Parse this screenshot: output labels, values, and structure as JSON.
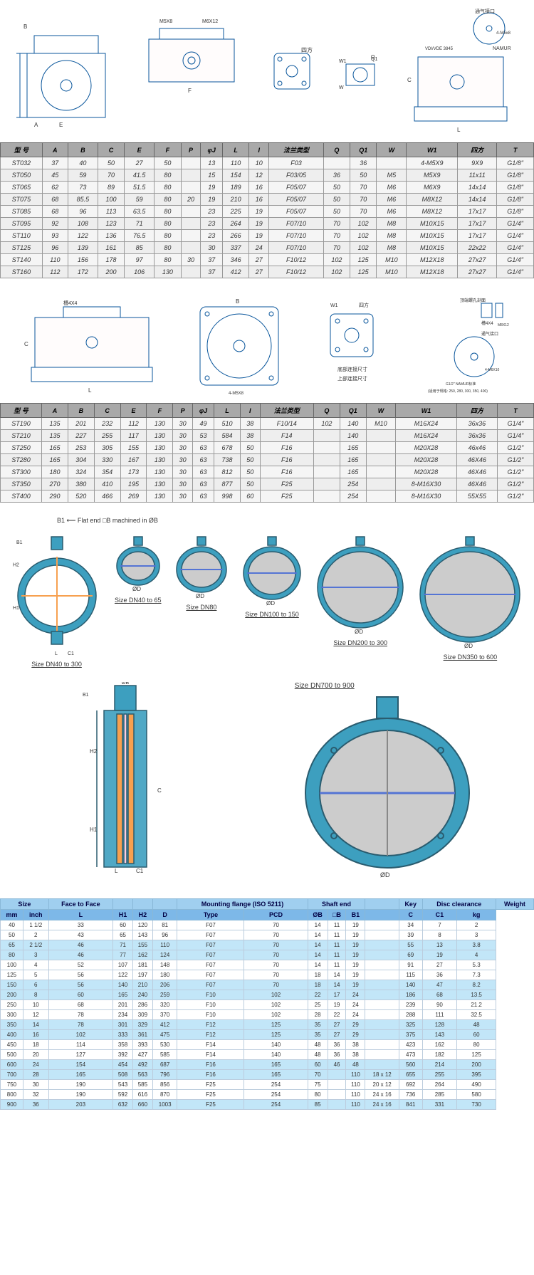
{
  "table1": {
    "headers": [
      "型 号",
      "A",
      "B",
      "C",
      "E",
      "F",
      "P",
      "φJ",
      "L",
      "I",
      "法兰类型",
      "Q",
      "Q1",
      "W",
      "W1",
      "四方",
      "T"
    ],
    "rows": [
      [
        "ST032",
        "37",
        "40",
        "50",
        "27",
        "50",
        "",
        "13",
        "110",
        "10",
        "F03",
        "",
        "36",
        "",
        "4-M5X9",
        "9X9",
        "G1/8\""
      ],
      [
        "ST050",
        "45",
        "59",
        "70",
        "41.5",
        "80",
        "",
        "15",
        "154",
        "12",
        "F03/05",
        "36",
        "50",
        "M5",
        "M5X9",
        "11x11",
        "G1/8\""
      ],
      [
        "ST065",
        "62",
        "73",
        "89",
        "51.5",
        "80",
        "",
        "19",
        "189",
        "16",
        "F05/07",
        "50",
        "70",
        "M6",
        "M6X9",
        "14x14",
        "G1/8\""
      ],
      [
        "ST075",
        "68",
        "85.5",
        "100",
        "59",
        "80",
        "20",
        "19",
        "210",
        "16",
        "F05/07",
        "50",
        "70",
        "M6",
        "M8X12",
        "14x14",
        "G1/8\""
      ],
      [
        "ST085",
        "68",
        "96",
        "113",
        "63.5",
        "80",
        "",
        "23",
        "225",
        "19",
        "F05/07",
        "50",
        "70",
        "M6",
        "M8X12",
        "17x17",
        "G1/8\""
      ],
      [
        "ST095",
        "92",
        "108",
        "123",
        "71",
        "80",
        "",
        "23",
        "264",
        "19",
        "F07/10",
        "70",
        "102",
        "M8",
        "M10X15",
        "17x17",
        "G1/4\""
      ],
      [
        "ST110",
        "93",
        "122",
        "136",
        "76.5",
        "80",
        "",
        "23",
        "266",
        "19",
        "F07/10",
        "70",
        "102",
        "M8",
        "M10X15",
        "17x17",
        "G1/4\""
      ],
      [
        "ST125",
        "96",
        "139",
        "161",
        "85",
        "80",
        "",
        "30",
        "337",
        "24",
        "F07/10",
        "70",
        "102",
        "M8",
        "M10X15",
        "22x22",
        "G1/4\""
      ],
      [
        "ST140",
        "110",
        "156",
        "178",
        "97",
        "80",
        "30",
        "37",
        "346",
        "27",
        "F10/12",
        "102",
        "125",
        "M10",
        "M12X18",
        "27x27",
        "G1/4\""
      ],
      [
        "ST160",
        "112",
        "172",
        "200",
        "106",
        "130",
        "",
        "37",
        "412",
        "27",
        "F10/12",
        "102",
        "125",
        "M10",
        "M12X18",
        "27x27",
        "G1/4\""
      ]
    ]
  },
  "table2": {
    "headers": [
      "型  号",
      "A",
      "B",
      "C",
      "E",
      "F",
      "P",
      "φJ",
      "L",
      "I",
      "法兰类型",
      "Q",
      "Q1",
      "W",
      "W1",
      "四方",
      "T"
    ],
    "rows": [
      [
        "ST190",
        "135",
        "201",
        "232",
        "112",
        "130",
        "30",
        "49",
        "510",
        "38",
        "F10/14",
        "102",
        "140",
        "M10",
        "M16X24",
        "36x36",
        "G1/4\""
      ],
      [
        "ST210",
        "135",
        "227",
        "255",
        "117",
        "130",
        "30",
        "53",
        "584",
        "38",
        "F14",
        "",
        "140",
        "",
        "M16X24",
        "36x36",
        "G1/4\""
      ],
      [
        "ST250",
        "165",
        "253",
        "305",
        "155",
        "130",
        "30",
        "63",
        "678",
        "50",
        "F16",
        "",
        "165",
        "",
        "M20X28",
        "46x46",
        "G1/2\""
      ],
      [
        "ST280",
        "165",
        "304",
        "330",
        "167",
        "130",
        "30",
        "63",
        "738",
        "50",
        "F16",
        "",
        "165",
        "",
        "M20X28",
        "46X46",
        "G1/2\""
      ],
      [
        "ST300",
        "180",
        "324",
        "354",
        "173",
        "130",
        "30",
        "63",
        "812",
        "50",
        "F16",
        "",
        "165",
        "",
        "M20X28",
        "46X46",
        "G1/2\""
      ],
      [
        "ST350",
        "270",
        "380",
        "410",
        "195",
        "130",
        "30",
        "63",
        "877",
        "50",
        "F25",
        "",
        "254",
        "",
        "8-M16X30",
        "46X46",
        "G1/2\""
      ],
      [
        "ST400",
        "290",
        "520",
        "466",
        "269",
        "130",
        "30",
        "63",
        "998",
        "60",
        "F25",
        "",
        "254",
        "",
        "8-M16X30",
        "55X55",
        "G1/2\""
      ]
    ]
  },
  "valves": [
    {
      "label": "Size DN40 to 300",
      "diam": "ØD"
    },
    {
      "label": "Size DN40 to 65",
      "diam": "ØD"
    },
    {
      "label": "Size DN80",
      "diam": "ØD"
    },
    {
      "label": "Size DN100 to 150",
      "diam": "ØD"
    },
    {
      "label": "Size DN200 to 300",
      "diam": ""
    },
    {
      "label": "Size DN350 to 600",
      "diam": "ØD"
    }
  ],
  "valve_annot": {
    "flat_end": "Flat end □B\nmachined in ØB",
    "size700": "Size DN700 to 900"
  },
  "table3": {
    "group_headers": [
      "Size",
      "Face to Face",
      "",
      "",
      "",
      "Mounting flange (ISO 5211)",
      "Shaft end",
      "",
      "Key",
      "Disc clearance",
      "Weight"
    ],
    "sub_headers": [
      "mm",
      "inch",
      "L",
      "H1",
      "H2",
      "D",
      "Type",
      "PCD",
      "ØB",
      "□B",
      "B1",
      "",
      "C",
      "C1",
      "kg"
    ],
    "rows": [
      [
        "40",
        "1 1/2",
        "33",
        "60",
        "120",
        "81",
        "F07",
        "70",
        "14",
        "11",
        "19",
        "",
        "34",
        "7",
        "2"
      ],
      [
        "50",
        "2",
        "43",
        "65",
        "143",
        "96",
        "F07",
        "70",
        "14",
        "11",
        "19",
        "",
        "39",
        "8",
        "3"
      ],
      [
        "65",
        "2 1/2",
        "46",
        "71",
        "155",
        "110",
        "F07",
        "70",
        "14",
        "11",
        "19",
        "",
        "55",
        "13",
        "3.8"
      ],
      [
        "80",
        "3",
        "46",
        "77",
        "162",
        "124",
        "F07",
        "70",
        "14",
        "11",
        "19",
        "",
        "69",
        "19",
        "4"
      ],
      [
        "100",
        "4",
        "52",
        "107",
        "181",
        "148",
        "F07",
        "70",
        "14",
        "11",
        "19",
        "",
        "91",
        "27",
        "5.3"
      ],
      [
        "125",
        "5",
        "56",
        "122",
        "197",
        "180",
        "F07",
        "70",
        "18",
        "14",
        "19",
        "",
        "115",
        "36",
        "7.3"
      ],
      [
        "150",
        "6",
        "56",
        "140",
        "210",
        "206",
        "F07",
        "70",
        "18",
        "14",
        "19",
        "",
        "140",
        "47",
        "8.2"
      ],
      [
        "200",
        "8",
        "60",
        "165",
        "240",
        "259",
        "F10",
        "102",
        "22",
        "17",
        "24",
        "",
        "186",
        "68",
        "13.5"
      ],
      [
        "250",
        "10",
        "68",
        "201",
        "286",
        "320",
        "F10",
        "102",
        "25",
        "19",
        "24",
        "",
        "239",
        "90",
        "21.2"
      ],
      [
        "300",
        "12",
        "78",
        "234",
        "309",
        "370",
        "F10",
        "102",
        "28",
        "22",
        "24",
        "",
        "288",
        "111",
        "32.5"
      ],
      [
        "350",
        "14",
        "78",
        "301",
        "329",
        "412",
        "F12",
        "125",
        "35",
        "27",
        "29",
        "",
        "325",
        "128",
        "48"
      ],
      [
        "400",
        "16",
        "102",
        "333",
        "361",
        "475",
        "F12",
        "125",
        "35",
        "27",
        "29",
        "",
        "375",
        "143",
        "60"
      ],
      [
        "450",
        "18",
        "114",
        "358",
        "393",
        "530",
        "F14",
        "140",
        "48",
        "36",
        "38",
        "",
        "423",
        "162",
        "80"
      ],
      [
        "500",
        "20",
        "127",
        "392",
        "427",
        "585",
        "F14",
        "140",
        "48",
        "36",
        "38",
        "",
        "473",
        "182",
        "125"
      ],
      [
        "600",
        "24",
        "154",
        "454",
        "492",
        "687",
        "F16",
        "165",
        "60",
        "46",
        "48",
        "",
        "560",
        "214",
        "200"
      ],
      [
        "700",
        "28",
        "165",
        "508",
        "563",
        "796",
        "F16",
        "165",
        "70",
        "",
        "110",
        "18 x 12",
        "655",
        "255",
        "395"
      ],
      [
        "750",
        "30",
        "190",
        "543",
        "585",
        "856",
        "F25",
        "254",
        "75",
        "",
        "110",
        "20 x 12",
        "692",
        "264",
        "490"
      ],
      [
        "800",
        "32",
        "190",
        "592",
        "616",
        "870",
        "F25",
        "254",
        "80",
        "",
        "110",
        "24 x 16",
        "736",
        "285",
        "580"
      ],
      [
        "900",
        "36",
        "203",
        "632",
        "660",
        "1003",
        "F25",
        "254",
        "85",
        "",
        "110",
        "24 x 16",
        "841",
        "331",
        "730"
      ]
    ]
  },
  "diagram_labels": {
    "top1": "M5X8",
    "top2": "M6X12",
    "top3": "通气接口",
    "namur": "NAMUR",
    "vdi": "VDI/VDE 3845",
    "sifang": "四方",
    "msx8": "4-M5x8",
    "mid_labels": [
      "槽4X4",
      "四方",
      "顶端螺孔剖面",
      "槽4X4",
      "M8X12",
      "通气接口",
      "4-M6X10",
      "底部连接尺寸",
      "上部连接尺寸",
      "4-M5X8",
      "G1/2\" NAMUR标准",
      "(适用于规格: 250, 280, 300, 350, 400)"
    ]
  },
  "colors": {
    "line_blue": "#08559b",
    "valve_teal": "#3d9fbf",
    "valve_dark": "#2a5c6f",
    "fill_gray": "#cccccc",
    "inner_blue": "#5474d4",
    "inner_orange": "#f7a050",
    "header_gray": "#a9a9a9",
    "header_blue": "#a0cfef",
    "sub_blue": "#7db8e8",
    "row_blue": "#c2e6f8"
  }
}
